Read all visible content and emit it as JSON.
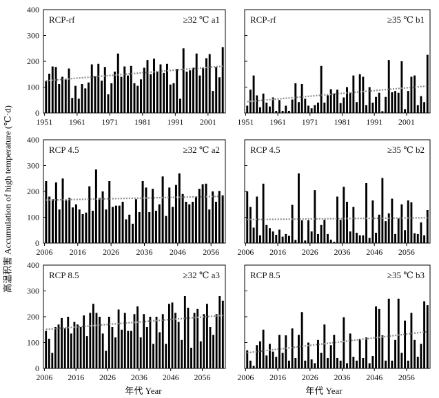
{
  "figure": {
    "ylabel": "高温积害 Accumulation of high temperature (℃·d)",
    "xlabel": "年代 Year"
  },
  "chart_data": [
    {
      "type": "bar",
      "id": "a1",
      "scenario": "RCP-rf",
      "threshold": "≥32 ℃",
      "panel_label": "a1",
      "x_start": 1951,
      "xticks": [
        1951,
        1961,
        1971,
        1981,
        1991,
        2001
      ],
      "ylim": [
        0,
        400
      ],
      "yticks": [
        0,
        100,
        200,
        300,
        400
      ],
      "trendline": "dotted",
      "values": [
        123,
        152,
        180,
        178,
        112,
        140,
        130,
        172,
        58,
        105,
        55,
        112,
        95,
        118,
        188,
        142,
        190,
        125,
        178,
        72,
        115,
        160,
        230,
        140,
        180,
        145,
        182,
        115,
        105,
        130,
        175,
        205,
        150,
        210,
        160,
        188,
        155,
        190,
        110,
        115,
        170,
        55,
        250,
        160,
        165,
        175,
        230,
        145,
        175,
        212,
        228,
        85,
        178,
        138,
        255
      ]
    },
    {
      "type": "bar",
      "id": "b1",
      "scenario": "RCP-rf",
      "threshold": "≥35 ℃",
      "panel_label": "b1",
      "x_start": 1951,
      "xticks": [
        1951,
        1961,
        1971,
        1981,
        1991,
        2001
      ],
      "ylim": [
        0,
        400
      ],
      "yticks": [
        0,
        100,
        200,
        300,
        400
      ],
      "trendline": "dotted",
      "values": [
        28,
        90,
        145,
        68,
        22,
        75,
        40,
        25,
        60,
        8,
        50,
        8,
        28,
        8,
        52,
        115,
        42,
        112,
        55,
        28,
        18,
        30,
        40,
        182,
        40,
        68,
        92,
        75,
        90,
        38,
        60,
        100,
        78,
        145,
        42,
        150,
        140,
        30,
        100,
        40,
        62,
        78,
        7,
        62,
        205,
        80,
        85,
        78,
        200,
        15,
        85,
        140,
        145,
        30,
        65,
        42,
        225
      ]
    },
    {
      "type": "bar",
      "id": "a2",
      "scenario": "RCP 4.5",
      "threshold": "≥32 ℃",
      "panel_label": "a2",
      "x_start": 2006,
      "xticks": [
        2006,
        2016,
        2026,
        2036,
        2046,
        2056
      ],
      "ylim": [
        0,
        400
      ],
      "yticks": [
        0,
        100,
        200,
        300,
        400
      ],
      "trendline": "dotted",
      "values": [
        240,
        180,
        170,
        235,
        130,
        250,
        165,
        175,
        138,
        150,
        130,
        112,
        118,
        220,
        125,
        285,
        175,
        200,
        130,
        240,
        140,
        145,
        145,
        160,
        92,
        110,
        75,
        170,
        120,
        240,
        215,
        120,
        210,
        125,
        150,
        258,
        105,
        215,
        140,
        225,
        270,
        190,
        160,
        150,
        160,
        180,
        210,
        228,
        230,
        130,
        200,
        160,
        202,
        185
      ]
    },
    {
      "type": "bar",
      "id": "b2",
      "scenario": "RCP 4.5",
      "threshold": "≥35 ℃",
      "panel_label": "b2",
      "x_start": 2006,
      "xticks": [
        2006,
        2016,
        2026,
        2036,
        2046,
        2056
      ],
      "ylim": [
        0,
        400
      ],
      "yticks": [
        0,
        100,
        200,
        300,
        400
      ],
      "trendline": "dotted",
      "values": [
        200,
        140,
        60,
        180,
        30,
        230,
        70,
        58,
        45,
        32,
        52,
        25,
        35,
        28,
        148,
        12,
        270,
        88,
        10,
        88,
        45,
        205,
        35,
        70,
        90,
        35,
        13,
        5,
        180,
        90,
        218,
        160,
        45,
        140,
        40,
        30,
        30,
        232,
        20,
        165,
        40,
        110,
        252,
        85,
        115,
        172,
        35,
        95,
        150,
        50,
        165,
        158,
        38,
        35,
        80,
        30,
        128
      ]
    },
    {
      "type": "bar",
      "id": "a3",
      "scenario": "RCP 8.5",
      "threshold": "≥32 ℃",
      "panel_label": "a3",
      "x_start": 2006,
      "xticks": [
        2006,
        2016,
        2026,
        2036,
        2046,
        2056
      ],
      "ylim": [
        0,
        400
      ],
      "yticks": [
        0,
        100,
        200,
        300,
        400
      ],
      "trendline": "dotted",
      "values": [
        145,
        115,
        60,
        160,
        170,
        195,
        155,
        200,
        135,
        180,
        170,
        160,
        205,
        125,
        215,
        250,
        215,
        200,
        135,
        68,
        200,
        160,
        120,
        228,
        150,
        215,
        145,
        145,
        210,
        240,
        120,
        210,
        160,
        200,
        95,
        200,
        140,
        210,
        95,
        250,
        255,
        215,
        180,
        110,
        280,
        235,
        80,
        215,
        230,
        105,
        210,
        250,
        160,
        130,
        210,
        280,
        262
      ]
    },
    {
      "type": "bar",
      "id": "b3",
      "scenario": "RCP 8.5",
      "threshold": "≥35 ℃",
      "panel_label": "b3",
      "x_start": 2006,
      "xticks": [
        2006,
        2016,
        2026,
        2036,
        2046,
        2056
      ],
      "ylim": [
        0,
        400
      ],
      "yticks": [
        0,
        100,
        200,
        300,
        400
      ],
      "trendline": "dotted",
      "values": [
        70,
        30,
        10,
        90,
        105,
        150,
        50,
        95,
        65,
        45,
        130,
        60,
        128,
        30,
        155,
        40,
        130,
        218,
        30,
        100,
        35,
        20,
        110,
        60,
        170,
        40,
        90,
        130,
        40,
        30,
        198,
        20,
        135,
        45,
        30,
        115,
        40,
        120,
        20,
        48,
        240,
        230,
        128,
        30,
        270,
        30,
        110,
        270,
        60,
        185,
        30,
        215,
        110,
        45,
        95,
        260,
        245
      ]
    }
  ]
}
